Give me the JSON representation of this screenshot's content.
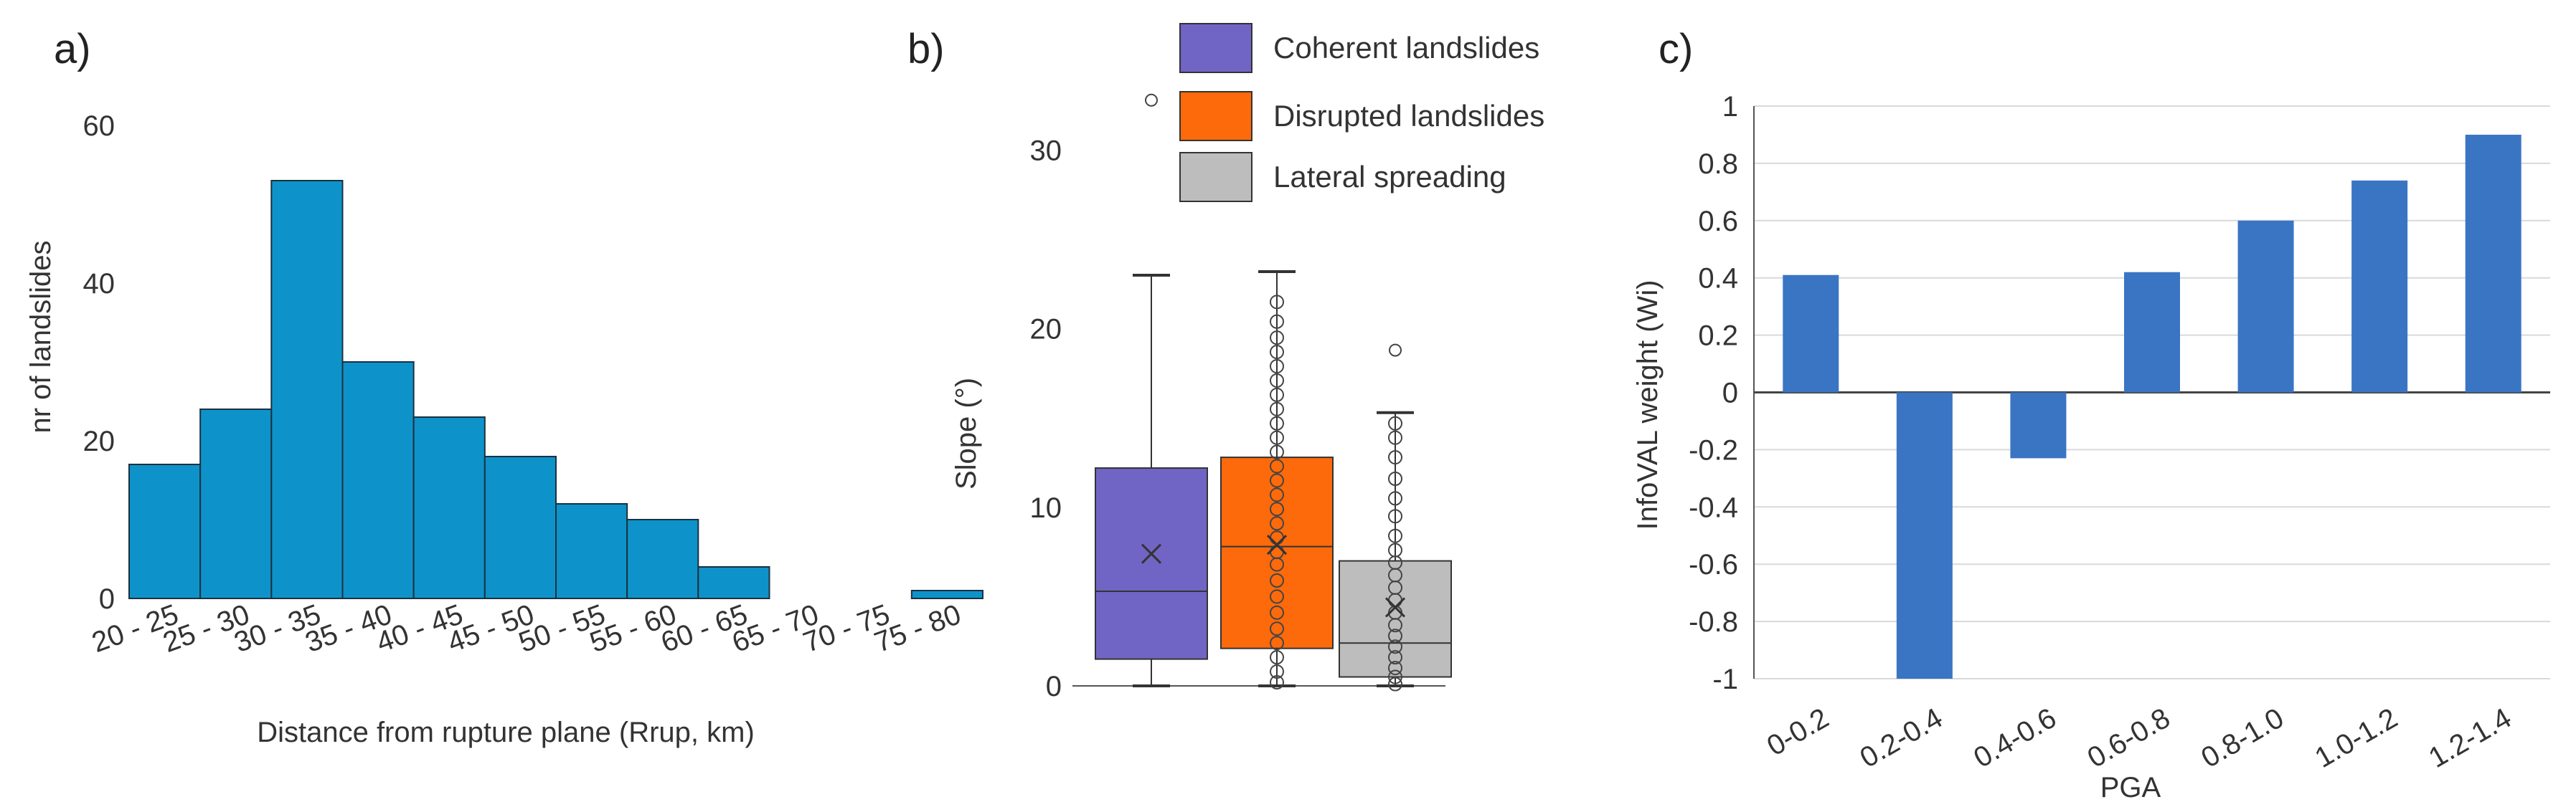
{
  "chart_data": [
    {
      "panel_label": "a)",
      "type": "bar",
      "title": "",
      "xlabel": "Distance from rupture plane (Rrup, km)",
      "ylabel": "nr of landslides",
      "categories": [
        "20 - 25",
        "25 - 30",
        "30 - 35",
        "35 - 40",
        "40 - 45",
        "45 - 50",
        "50 - 55",
        "55 - 60",
        "60 - 65",
        "65 - 70",
        "70 - 75",
        "75 - 80"
      ],
      "values": [
        17,
        24,
        53,
        30,
        23,
        18,
        12,
        10,
        4,
        0,
        0,
        1
      ],
      "ylim": [
        0,
        60
      ],
      "yticks": [
        0,
        20,
        40,
        60
      ],
      "color": "#0d93c9"
    },
    {
      "panel_label": "b)",
      "type": "box",
      "ylabel": "Slope (°)",
      "ylim": [
        0,
        35
      ],
      "yticks": [
        0,
        10,
        20,
        30
      ],
      "series": [
        {
          "name": "Coherent landslides",
          "color": "#7065c4",
          "min": 0,
          "q1": 1.5,
          "median": 5.3,
          "q3": 12.2,
          "max": 23,
          "mean": 7.4,
          "outliers": [
            32.8
          ],
          "points": []
        },
        {
          "name": "Disrupted landslides",
          "color": "#fd6a0b",
          "min": 0,
          "q1": 2.1,
          "median": 7.8,
          "q3": 12.8,
          "max": 23.2,
          "mean": 7.9,
          "outliers": [],
          "points": [
            0.2,
            0.8,
            1.6,
            2.4,
            3.2,
            4.1,
            5.0,
            5.9,
            6.8,
            7.5,
            8.3,
            9.1,
            9.9,
            10.7,
            11.5,
            12.3,
            13.1,
            13.9,
            14.7,
            15.5,
            16.3,
            17.1,
            17.9,
            18.7,
            19.5,
            20.4,
            21.5
          ]
        },
        {
          "name": "Lateral spreading",
          "color": "#bdbdbd",
          "min": 0,
          "q1": 0.5,
          "median": 2.4,
          "q3": 7,
          "max": 15.3,
          "mean": 4.4,
          "outliers": [
            18.8
          ],
          "points": [
            0.1,
            0.5,
            1.0,
            1.6,
            2.2,
            2.8,
            3.4,
            4.1,
            4.8,
            5.5,
            6.2,
            6.9,
            7.6,
            8.4,
            9.5,
            10.5,
            11.6,
            12.8,
            13.9,
            14.7
          ]
        }
      ]
    },
    {
      "panel_label": "c)",
      "type": "bar",
      "title": "",
      "xlabel": "PGA",
      "ylabel": "InfoVAL weight (Wi)",
      "categories": [
        "0-0.2",
        "0.2-0.4",
        "0.4-0.6",
        "0.6-0.8",
        "0.8-1.0",
        "1.0-1.2",
        "1.2-1.4"
      ],
      "values": [
        0.41,
        -1.0,
        -0.23,
        0.42,
        0.6,
        0.74,
        0.9
      ],
      "ylim": [
        -1,
        1
      ],
      "yticks": [
        "1",
        "0.8",
        "0.6",
        "0.4",
        "0.2",
        "0",
        "-0.2",
        "-0.4",
        "-0.6",
        "-0.8",
        "-1"
      ],
      "color": "#3a75c4",
      "grid": true
    }
  ]
}
